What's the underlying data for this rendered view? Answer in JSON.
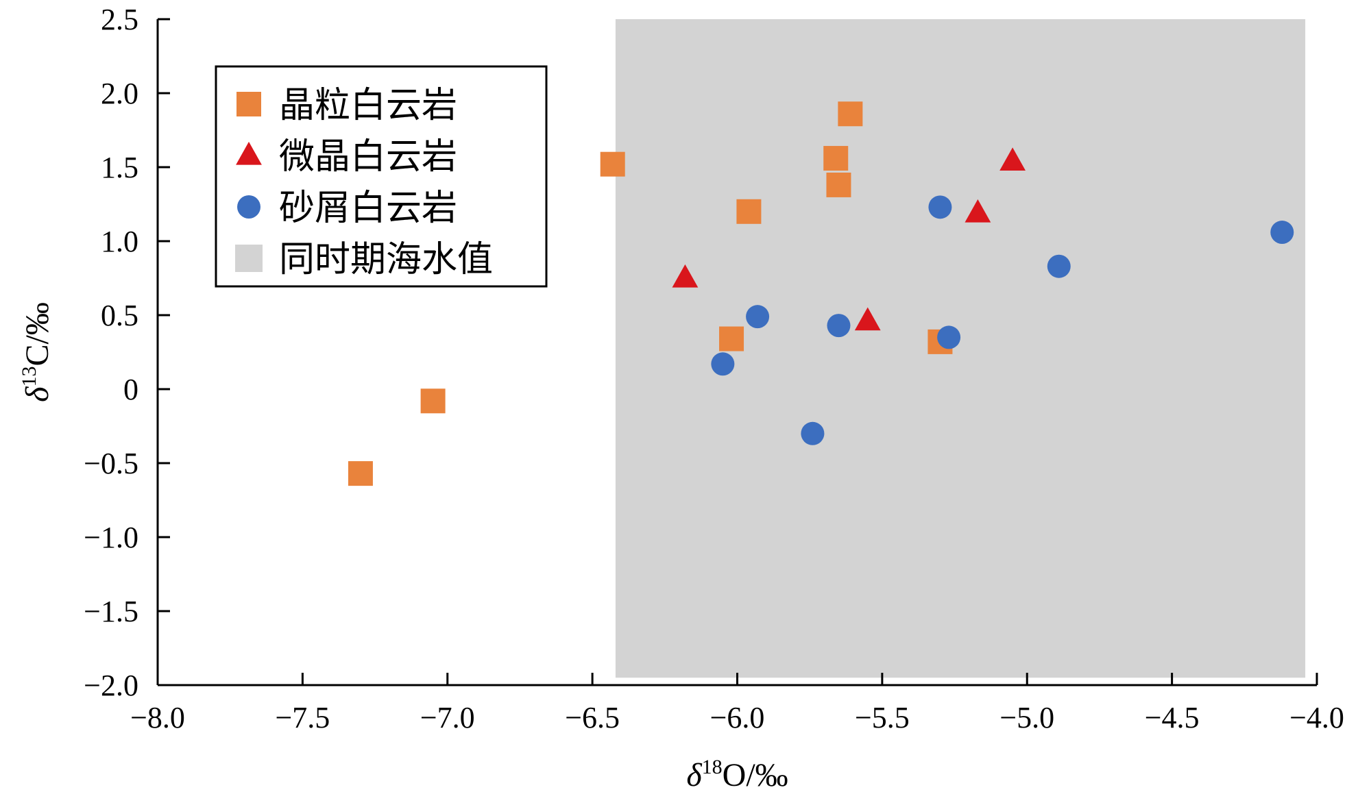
{
  "chart_data": {
    "type": "scatter",
    "title": "",
    "xlabel": {
      "prefix": "δ",
      "sup": "18",
      "suffix": "O/‰"
    },
    "ylabel": {
      "prefix": "δ",
      "sup": "13",
      "suffix": "C/‰"
    },
    "xlim": [
      -8.0,
      -4.0
    ],
    "ylim": [
      -2.0,
      2.5
    ],
    "xticks": [
      {
        "v": -8.0,
        "label": "−8.0"
      },
      {
        "v": -7.5,
        "label": "−7.5"
      },
      {
        "v": -7.0,
        "label": "−7.0"
      },
      {
        "v": -6.5,
        "label": "−6.5"
      },
      {
        "v": -6.0,
        "label": "−6.0"
      },
      {
        "v": -5.5,
        "label": "−5.5"
      },
      {
        "v": -5.0,
        "label": "−5.0"
      },
      {
        "v": -4.5,
        "label": "−4.5"
      },
      {
        "v": -4.0,
        "label": "−4.0"
      }
    ],
    "yticks": [
      {
        "v": 2.5,
        "label": "2.5"
      },
      {
        "v": 2.0,
        "label": "2.0"
      },
      {
        "v": 1.5,
        "label": "1.5"
      },
      {
        "v": 1.0,
        "label": "1.0"
      },
      {
        "v": 0.5,
        "label": "0.5"
      },
      {
        "v": 0.0,
        "label": "0"
      },
      {
        "v": -0.5,
        "label": "−0.5"
      },
      {
        "v": -1.0,
        "label": "−1.0"
      },
      {
        "v": -1.5,
        "label": "−1.5"
      },
      {
        "v": -2.0,
        "label": "−2.0"
      }
    ],
    "region": {
      "name": "同时期海水值",
      "x": [
        -6.42,
        -4.04
      ],
      "y": [
        -1.95,
        2.5
      ],
      "color": "#d3d3d3"
    },
    "legend_position": "top-left",
    "series": [
      {
        "name": "晶粒白云岩",
        "marker": "square",
        "color": "#e9833c",
        "points": [
          [
            -7.3,
            -0.57
          ],
          [
            -7.05,
            -0.08
          ],
          [
            -6.43,
            1.52
          ],
          [
            -5.96,
            1.2
          ],
          [
            -6.02,
            0.34
          ],
          [
            -5.66,
            1.56
          ],
          [
            -5.65,
            1.38
          ],
          [
            -5.61,
            1.86
          ],
          [
            -5.3,
            0.32
          ]
        ]
      },
      {
        "name": "微晶白云岩",
        "marker": "triangle",
        "color": "#d9161c",
        "points": [
          [
            -6.18,
            0.75
          ],
          [
            -5.55,
            0.46
          ],
          [
            -5.17,
            1.19
          ],
          [
            -5.05,
            1.54
          ]
        ]
      },
      {
        "name": "砂屑白云岩",
        "marker": "circle",
        "color": "#3c6ebf",
        "points": [
          [
            -6.05,
            0.17
          ],
          [
            -5.93,
            0.49
          ],
          [
            -5.74,
            -0.3
          ],
          [
            -5.65,
            0.43
          ],
          [
            -5.3,
            1.23
          ],
          [
            -5.27,
            0.35
          ],
          [
            -4.89,
            0.83
          ],
          [
            -4.12,
            1.06
          ]
        ]
      }
    ]
  }
}
